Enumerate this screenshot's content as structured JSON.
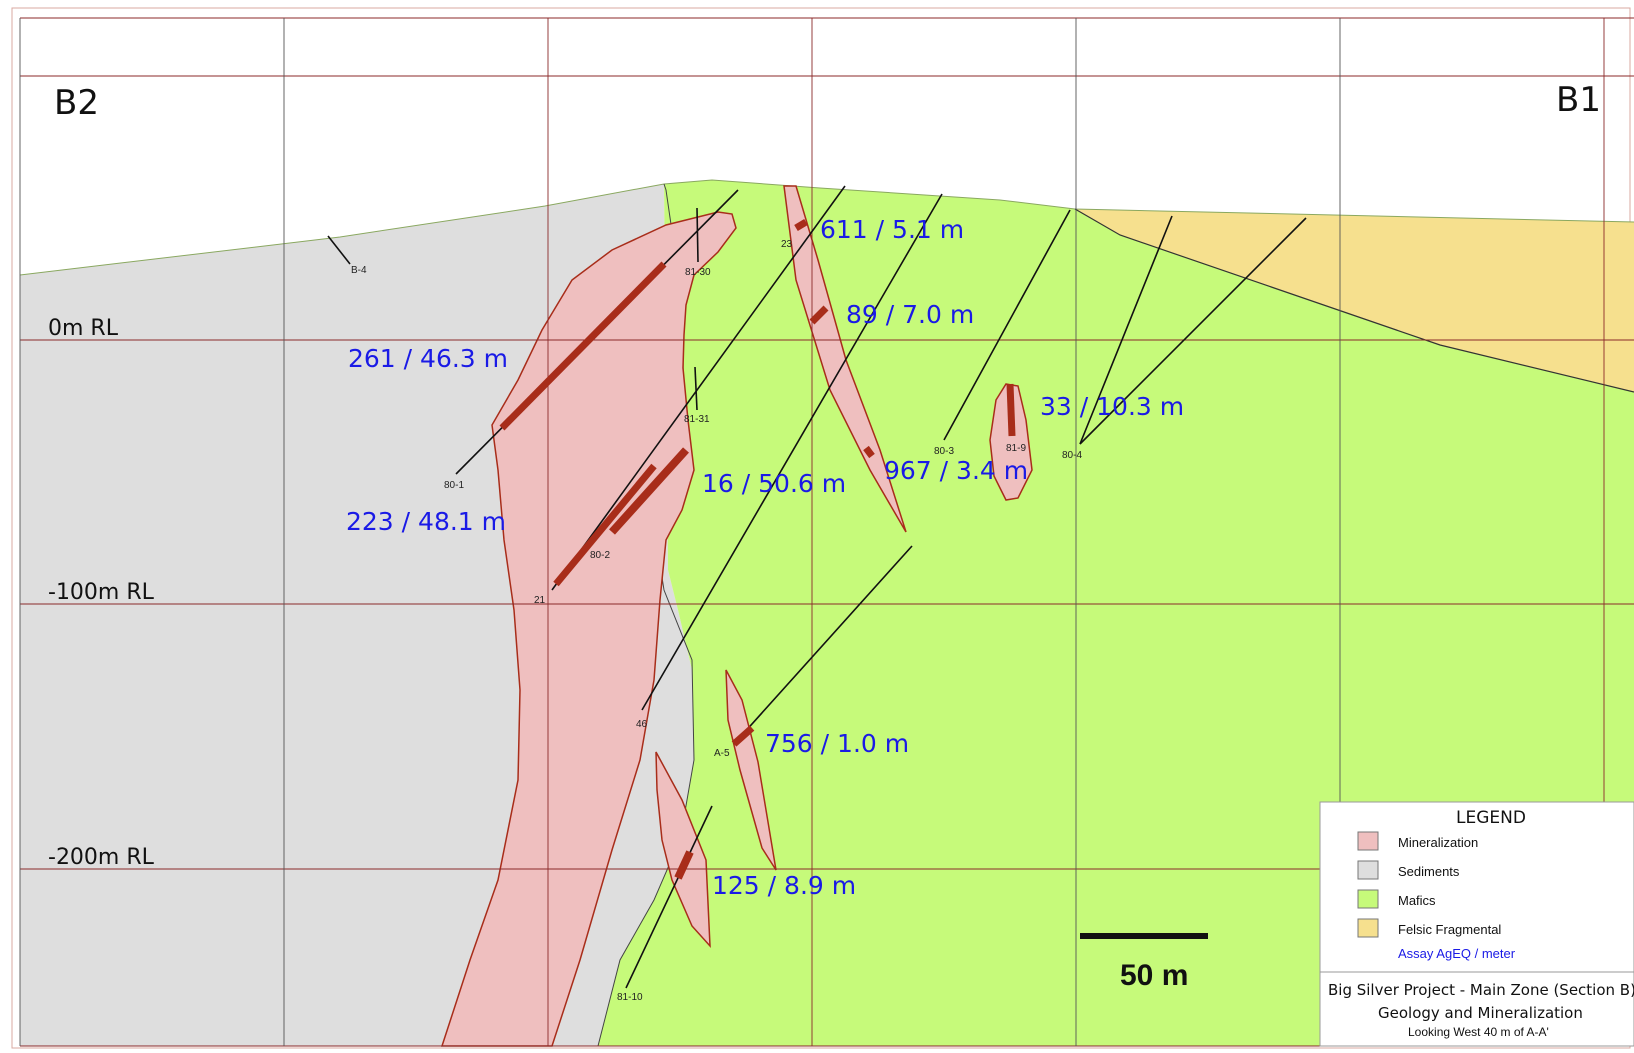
{
  "section": {
    "left_end_label": "B2",
    "right_end_label": "B1"
  },
  "elevations": [
    {
      "label": "0m RL"
    },
    {
      "label": "-100m RL"
    },
    {
      "label": "-200m RL"
    }
  ],
  "drill_holes": [
    {
      "id": "B-4"
    },
    {
      "id": "80-1"
    },
    {
      "id": "81-30"
    },
    {
      "id": "81-31"
    },
    {
      "id": "80-2"
    },
    {
      "id": "21"
    },
    {
      "id": "46"
    },
    {
      "id": "23"
    },
    {
      "id": "80-3"
    },
    {
      "id": "81-9"
    },
    {
      "id": "80-4"
    },
    {
      "id": "A-5"
    },
    {
      "id": "81-10"
    }
  ],
  "assays": [
    {
      "value": "611 / 5.1 m"
    },
    {
      "value": "89 / 7.0 m"
    },
    {
      "value": "261 / 46.3 m"
    },
    {
      "value": "33 / 10.3 m"
    },
    {
      "value": "967 / 3.4 m"
    },
    {
      "value": "16 / 50.6 m"
    },
    {
      "value": "223 / 48.1 m"
    },
    {
      "value": "756 / 1.0 m"
    },
    {
      "value": "125 / 8.9 m"
    }
  ],
  "scale_bar": {
    "label": "50 m"
  },
  "legend": {
    "title": "LEGEND",
    "items": [
      {
        "label": "Mineralization",
        "color": "#efbfbf"
      },
      {
        "label": "Sediments",
        "color": "#dedede"
      },
      {
        "label": "Mafics",
        "color": "#c6fa7a"
      },
      {
        "label": "Felsic Fragmental",
        "color": "#f6e08e"
      }
    ],
    "note": "Assay AgEQ / meter"
  },
  "title_block": {
    "line1": "Big Silver Project - Main Zone (Section B)",
    "line2": "Geology and Mineralization",
    "line3": "Looking West 40 m of A-A'"
  },
  "colors": {
    "mineralization": "#efbfbf",
    "mineralization_outline": "#a82d1a",
    "sediments": "#dedede",
    "mafics": "#c6fa7a",
    "felsic": "#f6e08e",
    "intercept": "#a82d1a",
    "grid": "#8b2a2a",
    "assay_text": "#1a1ae6"
  }
}
